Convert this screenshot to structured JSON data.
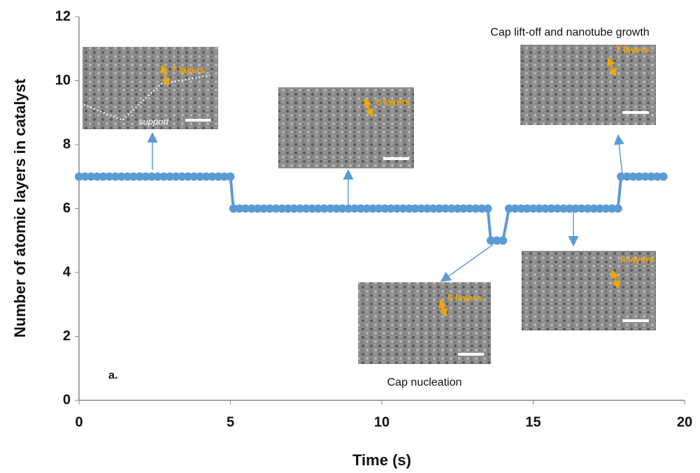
{
  "chart_data": {
    "type": "line",
    "xlabel": "Time (s)",
    "ylabel": "Number of atomic layers in catalyst",
    "x": [
      0,
      0.2,
      0.4,
      0.6,
      0.8,
      1,
      1.2,
      1.4,
      1.6,
      1.8,
      2,
      2.2,
      2.4,
      2.6,
      2.8,
      3,
      3.2,
      3.4,
      3.6,
      3.8,
      4,
      4.2,
      4.4,
      4.6,
      4.8,
      5,
      5.1,
      5.3,
      5.5,
      5.7,
      5.9,
      6.1,
      6.3,
      6.5,
      6.7,
      6.9,
      7.1,
      7.3,
      7.5,
      7.7,
      7.9,
      8.1,
      8.3,
      8.5,
      8.7,
      8.9,
      9.1,
      9.3,
      9.5,
      9.7,
      9.9,
      10.1,
      10.3,
      10.5,
      10.7,
      10.9,
      11.1,
      11.3,
      11.5,
      11.7,
      11.9,
      12.1,
      12.3,
      12.5,
      12.7,
      12.9,
      13.1,
      13.3,
      13.5,
      13.6,
      13.8,
      14,
      14.2,
      14.4,
      14.6,
      14.8,
      15,
      15.2,
      15.4,
      15.6,
      15.8,
      16,
      16.2,
      16.4,
      16.6,
      16.8,
      17,
      17.2,
      17.4,
      17.6,
      17.8,
      17.9,
      18.1,
      18.3,
      18.5,
      18.7,
      18.9,
      19.1,
      19.3
    ],
    "values": [
      7,
      7,
      7,
      7,
      7,
      7,
      7,
      7,
      7,
      7,
      7,
      7,
      7,
      7,
      7,
      7,
      7,
      7,
      7,
      7,
      7,
      7,
      7,
      7,
      7,
      7,
      6,
      6,
      6,
      6,
      6,
      6,
      6,
      6,
      6,
      6,
      6,
      6,
      6,
      6,
      6,
      6,
      6,
      6,
      6,
      6,
      6,
      6,
      6,
      6,
      6,
      6,
      6,
      6,
      6,
      6,
      6,
      6,
      6,
      6,
      6,
      6,
      6,
      6,
      6,
      6,
      6,
      6,
      6,
      5,
      5,
      5,
      6,
      6,
      6,
      6,
      6,
      6,
      6,
      6,
      6,
      6,
      6,
      6,
      6,
      6,
      6,
      6,
      6,
      6,
      6,
      7,
      7,
      7,
      7,
      7,
      7,
      7,
      7
    ],
    "color": "#5b9bd5",
    "xlim": [
      0,
      20
    ],
    "xticks": [
      0,
      5,
      10,
      15,
      20
    ],
    "ylim": [
      0,
      12
    ],
    "yticks": [
      0,
      2,
      4,
      6,
      8,
      10,
      12
    ],
    "grid": false,
    "annotations": [
      "Cap lift-off and nanotube growth",
      "Cap nucleation",
      "a."
    ],
    "inset_labels": [
      "7 layers",
      "support",
      "6 layers",
      "7 layers",
      "5 layers",
      "6 layers"
    ]
  }
}
